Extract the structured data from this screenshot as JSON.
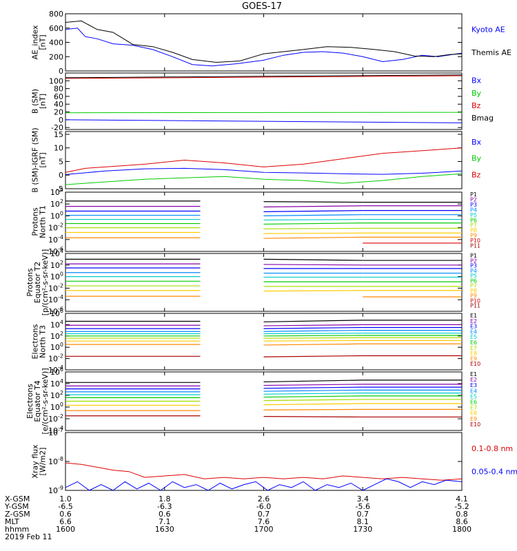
{
  "title": "GOES-17",
  "footer": {
    "date": "2019 Feb 11",
    "labels": [
      "X-GSM",
      "Y-GSM",
      "Z-GSM",
      "MLT",
      "hhmm"
    ],
    "columns": [
      [
        "1.0",
        "-6.5",
        "0.6",
        "6.6",
        "1600"
      ],
      [
        "1.8",
        "-6.3",
        "0.6",
        "7.1",
        "1630"
      ],
      [
        "2.6",
        "-6.0",
        "0.7",
        "7.6",
        "1700"
      ],
      [
        "3.4",
        "-5.6",
        "0.7",
        "8.1",
        "1730"
      ],
      [
        "4.1",
        "-5.2",
        "0.8",
        "8.6",
        "1800"
      ]
    ]
  },
  "chart_data": [
    {
      "type": "line",
      "panel": "ae",
      "ylabel": [
        "AE_index",
        "[nT]"
      ],
      "ylim": [
        0,
        800
      ],
      "yticks": [
        "0",
        "200",
        "400",
        "600",
        "800"
      ],
      "series": [
        {
          "name": "Kyoto AE",
          "color": "#0000ff",
          "x": [
            0,
            0.03,
            0.05,
            0.08,
            0.12,
            0.17,
            0.22,
            0.27,
            0.32,
            0.37,
            0.43,
            0.5,
            0.55,
            0.6,
            0.65,
            0.7,
            0.75,
            0.8,
            0.85,
            0.9,
            0.94,
            1
          ],
          "y": [
            580,
            600,
            480,
            450,
            380,
            360,
            300,
            200,
            90,
            70,
            100,
            150,
            220,
            260,
            270,
            250,
            200,
            130,
            160,
            220,
            200,
            250
          ]
        },
        {
          "name": "Themis AE",
          "color": "#000000",
          "x": [
            0,
            0.04,
            0.08,
            0.12,
            0.17,
            0.22,
            0.27,
            0.32,
            0.38,
            0.44,
            0.5,
            0.55,
            0.6,
            0.66,
            0.72,
            0.78,
            0.83,
            0.88,
            0.93,
            0.97,
            1
          ],
          "y": [
            680,
            700,
            580,
            540,
            370,
            340,
            260,
            160,
            120,
            140,
            240,
            270,
            300,
            340,
            330,
            300,
            270,
            210,
            200,
            230,
            240
          ]
        }
      ]
    },
    {
      "type": "line",
      "panel": "bsm",
      "ylabel": [
        "B (SM)",
        "[nT]"
      ],
      "ylim": [
        -25,
        120
      ],
      "yticks": [
        "-20",
        "0",
        "20",
        "40",
        "60",
        "80",
        "100"
      ],
      "series": [
        {
          "name": "Bx",
          "color": "#0000ff",
          "x": [
            0,
            1
          ],
          "y": [
            0,
            -8
          ]
        },
        {
          "name": "By",
          "color": "#00cc00",
          "x": [
            0,
            1
          ],
          "y": [
            18,
            19
          ]
        },
        {
          "name": "Bz",
          "color": "#dd0000",
          "x": [
            0,
            1
          ],
          "y": [
            106,
            113
          ]
        },
        {
          "name": "Bmag",
          "color": "#000000",
          "x": [
            0,
            1
          ],
          "y": [
            108,
            115
          ]
        }
      ]
    },
    {
      "type": "line",
      "panel": "bdiff",
      "ylabel": [
        "B (SM)-IGRF (SM)",
        "[nT]"
      ],
      "ylim": [
        -5,
        16
      ],
      "yticks": [
        "-5",
        "0",
        "5",
        "10",
        "15"
      ],
      "series": [
        {
          "name": "Bx",
          "color": "#0000ff",
          "x": [
            0,
            0.1,
            0.2,
            0.3,
            0.4,
            0.5,
            0.6,
            0.7,
            0.8,
            0.9,
            1
          ],
          "y": [
            0.2,
            1.5,
            2.3,
            2.5,
            2,
            1,
            0.8,
            0.5,
            0.3,
            0.7,
            1.5
          ]
        },
        {
          "name": "By",
          "color": "#00cc00",
          "x": [
            0,
            0.1,
            0.2,
            0.3,
            0.4,
            0.5,
            0.6,
            0.7,
            0.8,
            0.9,
            1
          ],
          "y": [
            -3.5,
            -2.5,
            -1.5,
            -1,
            -0.5,
            -1.5,
            -2,
            -3,
            -2,
            -0.5,
            0.5
          ]
        },
        {
          "name": "Bz",
          "color": "#dd0000",
          "x": [
            0,
            0.05,
            0.1,
            0.2,
            0.3,
            0.4,
            0.5,
            0.6,
            0.7,
            0.8,
            0.9,
            1
          ],
          "y": [
            1,
            2.5,
            3,
            4,
            5.5,
            4.5,
            3,
            4,
            6,
            8,
            9,
            10
          ]
        }
      ]
    },
    {
      "type": "line",
      "panel": "protons_t1",
      "ylabel": [
        "Protons",
        "North T1"
      ],
      "log": true,
      "ylim_exp": [
        -6,
        4
      ],
      "yticks": [
        "10^4",
        "10^2",
        "10^0",
        "10^-2",
        "10^-4",
        "10^-6"
      ],
      "series": [
        {
          "name": "P1",
          "color": "#000000",
          "levels": [
            2.5,
            2.4,
            2.3
          ]
        },
        {
          "name": "P2",
          "color": "#8800aa",
          "levels": [
            1.6,
            1.5,
            1.7
          ]
        },
        {
          "name": "P3",
          "color": "#0000ff",
          "levels": [
            0.8,
            0.7,
            0.9
          ]
        },
        {
          "name": "P4",
          "color": "#0088ff",
          "levels": [
            0.1,
            0.0,
            0.2
          ]
        },
        {
          "name": "P5",
          "color": "#00cccc",
          "levels": [
            -0.6,
            -0.7,
            -0.6
          ]
        },
        {
          "name": "P6",
          "color": "#00cc00",
          "levels": [
            -1.3,
            -1.4,
            -1.2
          ]
        },
        {
          "name": "P7",
          "color": "#aadd00",
          "levels": [
            -2.0,
            -2.2,
            -2.1
          ]
        },
        {
          "name": "P8",
          "color": "#ffcc00",
          "levels": [
            -2.8,
            -3.0,
            -2.9
          ]
        },
        {
          "name": "P9",
          "color": "#ff8800",
          "levels": [
            -3.7,
            -3.8,
            -3.6
          ]
        },
        {
          "name": "P10",
          "color": "#dd0000",
          "levels": [
            null,
            null,
            -4.6
          ]
        },
        {
          "name": "P11",
          "color": "#990000",
          "levels": [
            null,
            null,
            null
          ]
        }
      ]
    },
    {
      "type": "line",
      "panel": "protons_t2",
      "ylabel": [
        "Protons",
        "Equator T2",
        "[p/(cm²-s-sr-keV)]"
      ],
      "log": true,
      "ylim_exp": [
        -6,
        4
      ],
      "yticks": [
        "10^4",
        "10^2",
        "10^0",
        "10^-2",
        "10^-4",
        "10^-6"
      ],
      "series": [
        {
          "name": "P1",
          "color": "#000000",
          "levels": [
            3.0,
            3.0,
            2.8
          ]
        },
        {
          "name": "P2",
          "color": "#8800aa",
          "levels": [
            2.2,
            2.1,
            2.0
          ]
        },
        {
          "name": "P3",
          "color": "#0000ff",
          "levels": [
            1.5,
            1.4,
            1.4
          ]
        },
        {
          "name": "P4",
          "color": "#0088ff",
          "levels": [
            0.7,
            0.6,
            0.6
          ]
        },
        {
          "name": "P5",
          "color": "#00cccc",
          "levels": [
            0.0,
            -0.1,
            -0.1
          ]
        },
        {
          "name": "P6",
          "color": "#00cc00",
          "levels": [
            -0.8,
            -0.9,
            -0.9
          ]
        },
        {
          "name": "P7",
          "color": "#aadd00",
          "levels": [
            -1.6,
            -1.7,
            -1.7
          ]
        },
        {
          "name": "P8",
          "color": "#ffcc00",
          "levels": [
            -2.4,
            -2.5,
            -2.4
          ]
        },
        {
          "name": "P9",
          "color": "#ff8800",
          "levels": [
            -3.4,
            null,
            -3.5
          ]
        },
        {
          "name": "P10",
          "color": "#dd0000",
          "levels": [
            null,
            null,
            null
          ]
        },
        {
          "name": "P11",
          "color": "#990000",
          "levels": [
            null,
            null,
            null
          ]
        }
      ]
    },
    {
      "type": "line",
      "panel": "electrons_t3",
      "ylabel": [
        "Electrons",
        "North T3"
      ],
      "log": true,
      "ylim_exp": [
        -4,
        6
      ],
      "yticks": [
        "10^6",
        "10^4",
        "10^2",
        "10^0",
        "10^-2",
        "10^-4"
      ],
      "series": [
        {
          "name": "E1",
          "color": "#000000",
          "levels": [
            4.6,
            4.5,
            4.8
          ]
        },
        {
          "name": "E2",
          "color": "#8800aa",
          "levels": [
            3.9,
            3.8,
            4.0
          ]
        },
        {
          "name": "E3",
          "color": "#0000ff",
          "levels": [
            3.3,
            3.3,
            3.5
          ]
        },
        {
          "name": "E4",
          "color": "#0088ff",
          "levels": [
            2.8,
            2.8,
            3.0
          ]
        },
        {
          "name": "E5",
          "color": "#00cccc",
          "levels": [
            2.4,
            2.4,
            2.5
          ]
        },
        {
          "name": "E6",
          "color": "#00cc00",
          "levels": [
            2.0,
            2.0,
            2.1
          ]
        },
        {
          "name": "E7",
          "color": "#aadd00",
          "levels": [
            1.6,
            1.6,
            1.7
          ]
        },
        {
          "name": "E8",
          "color": "#ffcc00",
          "levels": [
            1.1,
            1.1,
            1.2
          ]
        },
        {
          "name": "E9",
          "color": "#ff8800",
          "levels": [
            0.5,
            0.4,
            0.6
          ]
        },
        {
          "name": "E10",
          "color": "#aa0000",
          "levels": [
            -1.6,
            -1.7,
            -1.5
          ]
        }
      ]
    },
    {
      "type": "line",
      "panel": "electrons_t4",
      "ylabel": [
        "Electrons",
        "Equator T4",
        "[e/(cm²-s-sr-keV)]"
      ],
      "log": true,
      "ylim_exp": [
        -4,
        6
      ],
      "yticks": [
        "10^6",
        "10^4",
        "10^2",
        "10^0",
        "10^-2",
        "10^-4"
      ],
      "series": [
        {
          "name": "E1",
          "color": "#000000",
          "levels": [
            4.2,
            4.3,
            4.6
          ]
        },
        {
          "name": "E2",
          "color": "#8800aa",
          "levels": [
            3.6,
            3.7,
            3.9
          ]
        },
        {
          "name": "E3",
          "color": "#0000ff",
          "levels": [
            3.1,
            3.2,
            3.4
          ]
        },
        {
          "name": "E4",
          "color": "#0088ff",
          "levels": [
            2.6,
            2.7,
            2.9
          ]
        },
        {
          "name": "E5",
          "color": "#00cccc",
          "levels": [
            2.1,
            2.2,
            2.4
          ]
        },
        {
          "name": "E6",
          "color": "#00cc00",
          "levels": [
            1.6,
            1.7,
            1.9
          ]
        },
        {
          "name": "E7",
          "color": "#aadd00",
          "levels": [
            1.0,
            1.1,
            1.3
          ]
        },
        {
          "name": "E8",
          "color": "#ffcc00",
          "levels": [
            0.3,
            0.4,
            0.6
          ]
        },
        {
          "name": "E9",
          "color": "#ff8800",
          "levels": [
            -0.6,
            -0.5,
            -0.4
          ]
        },
        {
          "name": "E10",
          "color": "#aa0000",
          "levels": [
            -1.5,
            -1.6,
            -1.7
          ]
        }
      ]
    },
    {
      "type": "line",
      "panel": "xray",
      "ylabel": [
        "Xray flux",
        "[W/m2]"
      ],
      "log": true,
      "ylim_exp": [
        -9,
        -7
      ],
      "yticks": [
        "10^-7",
        "10^-8",
        "10^-9"
      ],
      "series": [
        {
          "name": "0.1-0.8 nm",
          "color": "#dd0000",
          "x": [
            0,
            0.04,
            0.08,
            0.12,
            0.16,
            0.2,
            0.25,
            0.3,
            0.35,
            0.4,
            0.45,
            0.5,
            0.55,
            0.6,
            0.65,
            0.7,
            0.75,
            0.8,
            0.85,
            0.9,
            0.95,
            1
          ],
          "y": [
            -8.05,
            -8.1,
            -8.2,
            -8.3,
            -8.35,
            -8.55,
            -8.5,
            -8.45,
            -8.6,
            -8.55,
            -8.6,
            -8.55,
            -8.6,
            -8.55,
            -8.6,
            -8.5,
            -8.55,
            -8.6,
            -8.55,
            -8.6,
            -8.65,
            -8.6
          ]
        },
        {
          "name": "0.05-0.4 nm",
          "color": "#0000ff",
          "x": [
            0,
            0.03,
            0.06,
            0.09,
            0.12,
            0.15,
            0.18,
            0.21,
            0.24,
            0.27,
            0.3,
            0.33,
            0.36,
            0.39,
            0.42,
            0.45,
            0.48,
            0.51,
            0.54,
            0.57,
            0.6,
            0.63,
            0.66,
            0.69,
            0.72,
            0.75,
            0.78,
            0.81,
            0.84,
            0.87,
            0.9,
            0.93,
            0.96,
            1
          ],
          "y": [
            -8.9,
            -8.7,
            -9.0,
            -8.8,
            -9.0,
            -8.7,
            -8.95,
            -8.75,
            -9.0,
            -8.7,
            -8.9,
            -8.8,
            -9.0,
            -8.75,
            -8.95,
            -8.8,
            -8.7,
            -9.0,
            -8.8,
            -8.9,
            -8.7,
            -9.0,
            -8.8,
            -8.9,
            -8.75,
            -9.0,
            -8.8,
            -8.6,
            -8.7,
            -8.9,
            -8.7,
            -8.8,
            -8.65,
            -8.7
          ]
        }
      ]
    }
  ]
}
